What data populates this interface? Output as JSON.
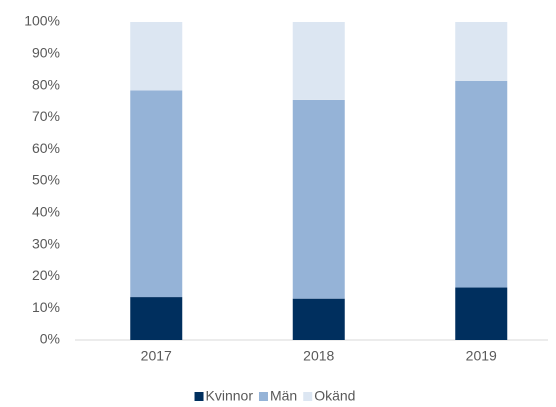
{
  "chart_data": {
    "type": "stacked_bar",
    "categories": [
      "2017",
      "2018",
      "2019"
    ],
    "series": [
      {
        "name": "Kvinnor",
        "color": "#002f5e",
        "values": [
          13.5,
          13,
          16.5
        ]
      },
      {
        "name": "Män",
        "color": "#95b3d7",
        "values": [
          65,
          62.5,
          65
        ]
      },
      {
        "name": "Okänd",
        "color": "#dce6f2",
        "values": [
          21.5,
          24.5,
          18.5
        ]
      }
    ],
    "ylim": [
      0,
      100
    ],
    "yticks": [
      {
        "value": 0,
        "label": "0%"
      },
      {
        "value": 10,
        "label": "10%"
      },
      {
        "value": 20,
        "label": "20%"
      },
      {
        "value": 30,
        "label": "30%"
      },
      {
        "value": 40,
        "label": "40%"
      },
      {
        "value": 50,
        "label": "50%"
      },
      {
        "value": 60,
        "label": "60%"
      },
      {
        "value": 70,
        "label": "70%"
      },
      {
        "value": 80,
        "label": "80%"
      },
      {
        "value": 90,
        "label": "90%"
      },
      {
        "value": 100,
        "label": "100%"
      }
    ],
    "grid": false,
    "legend": "bottom"
  }
}
